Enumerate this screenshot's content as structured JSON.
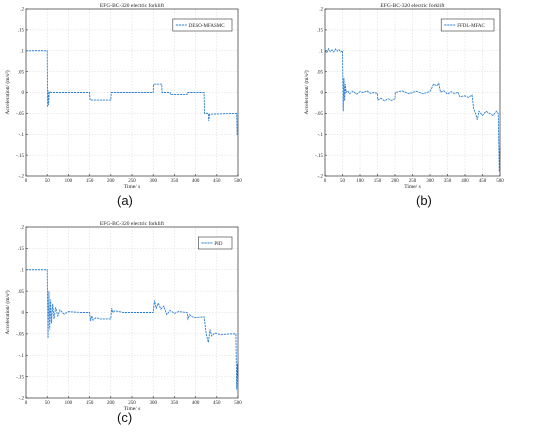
{
  "panels": [
    {
      "label": "(a)"
    },
    {
      "label": "(b)"
    },
    {
      "label": "(c)"
    }
  ],
  "chart_data": [
    {
      "type": "line",
      "title": "EFG-BC-320 electric forklift",
      "xlabel": "Time/ s",
      "ylabel": "Acceleration/ (m/s²)",
      "xlim": [
        0,
        500
      ],
      "ylim": [
        -0.2,
        0.2
      ],
      "xticks": [
        0,
        50,
        100,
        150,
        200,
        250,
        300,
        350,
        400,
        450,
        500
      ],
      "yticks": [
        -0.2,
        -0.15,
        -0.1,
        -0.05,
        0,
        0.05,
        0.1,
        0.15,
        0.2
      ],
      "grid": true,
      "legend_position": "top-right",
      "color": "#2a7fd4",
      "series": [
        {
          "name": "DESO-MFASMC",
          "points": [
            [
              0,
              0.1
            ],
            [
              50,
              0.1
            ],
            [
              51,
              -0.035
            ],
            [
              52,
              0.005
            ],
            [
              53,
              -0.03
            ],
            [
              55,
              0.002
            ],
            [
              60,
              0
            ],
            [
              100,
              0
            ],
            [
              150,
              0
            ],
            [
              151,
              -0.018
            ],
            [
              200,
              -0.018
            ],
            [
              201,
              0
            ],
            [
              300,
              0
            ],
            [
              301,
              0.02
            ],
            [
              320,
              0.02
            ],
            [
              321,
              0
            ],
            [
              340,
              0
            ],
            [
              341,
              -0.005
            ],
            [
              380,
              -0.005
            ],
            [
              381,
              0
            ],
            [
              420,
              0
            ],
            [
              421,
              -0.05
            ],
            [
              430,
              -0.05
            ],
            [
              431,
              -0.068
            ],
            [
              433,
              -0.052
            ],
            [
              497,
              -0.05
            ],
            [
              498,
              -0.1
            ],
            [
              500,
              -0.1
            ]
          ]
        }
      ]
    },
    {
      "type": "line",
      "title": "EFG-BC-320 electric forklift",
      "xlabel": "Time/ s",
      "ylabel": "Acceleration/ (m/s²)",
      "xlim": [
        0,
        500
      ],
      "ylim": [
        -0.2,
        0.2
      ],
      "xticks": [
        0,
        50,
        100,
        150,
        200,
        250,
        300,
        350,
        400,
        450,
        500
      ],
      "yticks": [
        -0.2,
        -0.15,
        -0.1,
        -0.05,
        0,
        0.05,
        0.1,
        0.15,
        0.2
      ],
      "grid": true,
      "legend_position": "top-right",
      "color": "#2a7fd4",
      "series": [
        {
          "name": "FFDL-MFAC",
          "points": [
            [
              0,
              0.1
            ],
            [
              5,
              0.095
            ],
            [
              10,
              0.105
            ],
            [
              15,
              0.098
            ],
            [
              20,
              0.102
            ],
            [
              25,
              0.097
            ],
            [
              30,
              0.104
            ],
            [
              35,
              0.099
            ],
            [
              40,
              0.103
            ],
            [
              45,
              0.097
            ],
            [
              50,
              0.1
            ],
            [
              52,
              -0.045
            ],
            [
              54,
              0.035
            ],
            [
              56,
              -0.02
            ],
            [
              58,
              0.02
            ],
            [
              60,
              0
            ],
            [
              65,
              0.004
            ],
            [
              70,
              -0.003
            ],
            [
              80,
              0.003
            ],
            [
              90,
              -0.004
            ],
            [
              100,
              0.002
            ],
            [
              110,
              0
            ],
            [
              120,
              0.004
            ],
            [
              130,
              -0.002
            ],
            [
              140,
              0
            ],
            [
              150,
              -0.002
            ],
            [
              151,
              -0.018
            ],
            [
              160,
              -0.014
            ],
            [
              170,
              -0.02
            ],
            [
              180,
              -0.015
            ],
            [
              190,
              -0.019
            ],
            [
              200,
              -0.015
            ],
            [
              201,
              0
            ],
            [
              220,
              0.004
            ],
            [
              240,
              -0.003
            ],
            [
              260,
              0.003
            ],
            [
              280,
              -0.003
            ],
            [
              300,
              0.002
            ],
            [
              310,
              0.02
            ],
            [
              320,
              0.016
            ],
            [
              325,
              0.022
            ],
            [
              330,
              0.001
            ],
            [
              340,
              0.004
            ],
            [
              350,
              -0.004
            ],
            [
              360,
              0.002
            ],
            [
              370,
              -0.003
            ],
            [
              380,
              0.001
            ],
            [
              385,
              -0.01
            ],
            [
              400,
              -0.008
            ],
            [
              410,
              -0.012
            ],
            [
              420,
              -0.006
            ],
            [
              425,
              -0.04
            ],
            [
              430,
              -0.05
            ],
            [
              435,
              -0.065
            ],
            [
              440,
              -0.045
            ],
            [
              450,
              -0.055
            ],
            [
              460,
              -0.045
            ],
            [
              470,
              -0.05
            ],
            [
              480,
              -0.055
            ],
            [
              490,
              -0.045
            ],
            [
              495,
              -0.05
            ],
            [
              498,
              -0.19
            ],
            [
              500,
              -0.13
            ]
          ]
        }
      ]
    },
    {
      "type": "line",
      "title": "EFG-BC-320 electric forklift",
      "xlabel": "Time/ s",
      "ylabel": "Acceleration/ (m/s²)",
      "xlim": [
        0,
        500
      ],
      "ylim": [
        -0.2,
        0.2
      ],
      "xticks": [
        0,
        50,
        100,
        150,
        200,
        250,
        300,
        350,
        400,
        450,
        500
      ],
      "yticks": [
        -0.2,
        -0.15,
        -0.1,
        -0.05,
        0,
        0.05,
        0.1,
        0.15,
        0.2
      ],
      "grid": true,
      "legend_position": "top-right",
      "color": "#2a7fd4",
      "series": [
        {
          "name": "PID",
          "points": [
            [
              0,
              0.1
            ],
            [
              50,
              0.1
            ],
            [
              52,
              -0.06
            ],
            [
              54,
              0.05
            ],
            [
              56,
              -0.04
            ],
            [
              58,
              0.03
            ],
            [
              60,
              -0.025
            ],
            [
              63,
              0.02
            ],
            [
              66,
              -0.015
            ],
            [
              70,
              0.012
            ],
            [
              75,
              -0.008
            ],
            [
              80,
              0.006
            ],
            [
              90,
              -0.004
            ],
            [
              100,
              0.002
            ],
            [
              130,
              0
            ],
            [
              150,
              0
            ],
            [
              152,
              -0.02
            ],
            [
              155,
              -0.008
            ],
            [
              158,
              -0.018
            ],
            [
              165,
              -0.012
            ],
            [
              175,
              -0.015
            ],
            [
              200,
              -0.015
            ],
            [
              202,
              0.01
            ],
            [
              205,
              0
            ],
            [
              210,
              0.004
            ],
            [
              230,
              0
            ],
            [
              260,
              0
            ],
            [
              300,
              0
            ],
            [
              303,
              0.028
            ],
            [
              307,
              0.01
            ],
            [
              312,
              0.022
            ],
            [
              318,
              0.008
            ],
            [
              325,
              0.015
            ],
            [
              332,
              -0.005
            ],
            [
              340,
              0.005
            ],
            [
              350,
              -0.002
            ],
            [
              360,
              0.002
            ],
            [
              380,
              0
            ],
            [
              382,
              -0.015
            ],
            [
              386,
              -0.005
            ],
            [
              392,
              -0.01
            ],
            [
              400,
              -0.012
            ],
            [
              420,
              -0.01
            ],
            [
              425,
              -0.05
            ],
            [
              430,
              -0.07
            ],
            [
              434,
              -0.04
            ],
            [
              438,
              -0.055
            ],
            [
              445,
              -0.048
            ],
            [
              460,
              -0.052
            ],
            [
              480,
              -0.05
            ],
            [
              495,
              -0.05
            ],
            [
              497,
              -0.18
            ],
            [
              499,
              -0.12
            ],
            [
              500,
              -0.15
            ]
          ]
        }
      ]
    }
  ]
}
